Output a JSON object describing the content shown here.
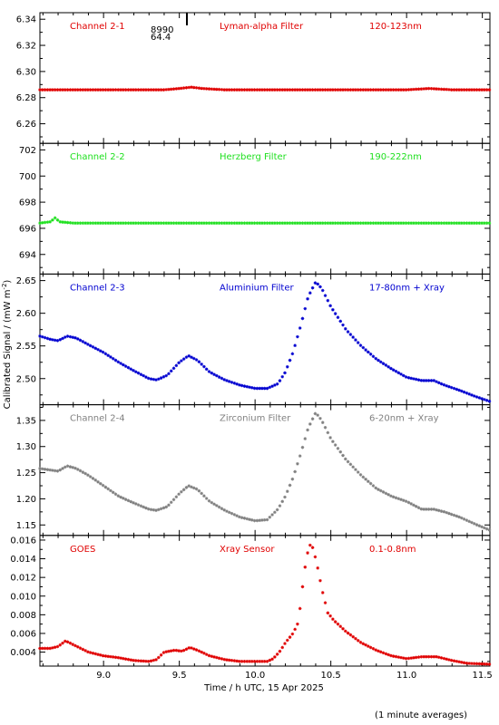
{
  "chart_data": {
    "type": "scatter",
    "xlabel": "Time / h UTC, 15 Apr 2025",
    "ylabel": "Calibrated Signal / (mW m",
    "ylabel_sup": "-2",
    "ylabel_close": ")",
    "footnote": "(1 minute averages)",
    "xlim": [
      8.58,
      11.55
    ],
    "x_ticks": [
      9.0,
      9.5,
      10.0,
      10.5,
      11.0,
      11.5
    ],
    "x_tick_labels": [
      "9.0",
      "9.5",
      "10.0",
      "10.5",
      "11.0",
      "11.5"
    ],
    "marker_annotation": {
      "x": 9.55,
      "lines": [
        "8990",
        "64.4"
      ]
    },
    "panels": [
      {
        "name": "Channel 2-1",
        "filter": "Lyman-alpha Filter",
        "band": "120-123nm",
        "color": "#e00000",
        "ylim": [
          6.245,
          6.345
        ],
        "y_ticks": [
          6.26,
          6.28,
          6.3,
          6.32,
          6.34
        ],
        "y_tick_labels": [
          "6.26",
          "6.28",
          "6.30",
          "6.32",
          "6.34"
        ],
        "points": [
          [
            8.58,
            6.286
          ],
          [
            8.8,
            6.286
          ],
          [
            9.0,
            6.286
          ],
          [
            9.2,
            6.286
          ],
          [
            9.4,
            6.286
          ],
          [
            9.5,
            6.287
          ],
          [
            9.58,
            6.288
          ],
          [
            9.65,
            6.287
          ],
          [
            9.8,
            6.286
          ],
          [
            10.0,
            6.286
          ],
          [
            10.2,
            6.286
          ],
          [
            10.4,
            6.286
          ],
          [
            10.6,
            6.286
          ],
          [
            10.8,
            6.286
          ],
          [
            11.0,
            6.286
          ],
          [
            11.15,
            6.287
          ],
          [
            11.3,
            6.286
          ],
          [
            11.55,
            6.286
          ]
        ]
      },
      {
        "name": "Channel 2-2",
        "filter": "Herzberg Filter",
        "band": "190-222nm",
        "color": "#20e020",
        "ylim": [
          692.5,
          702.5
        ],
        "y_ticks": [
          694,
          696,
          698,
          700,
          702
        ],
        "y_tick_labels": [
          "694",
          "696",
          "698",
          "700",
          "702"
        ],
        "points": [
          [
            8.58,
            696.4
          ],
          [
            8.65,
            696.5
          ],
          [
            8.68,
            696.8
          ],
          [
            8.71,
            696.5
          ],
          [
            8.8,
            696.4
          ],
          [
            9.0,
            696.4
          ],
          [
            9.5,
            696.4
          ],
          [
            10.0,
            696.4
          ],
          [
            10.5,
            696.4
          ],
          [
            11.0,
            696.4
          ],
          [
            11.55,
            696.4
          ]
        ]
      },
      {
        "name": "Channel 2-3",
        "filter": "Aluminium Filter",
        "band": "17-80nm + Xray",
        "color": "#0000d0",
        "ylim": [
          2.46,
          2.66
        ],
        "y_ticks": [
          2.5,
          2.55,
          2.6,
          2.65
        ],
        "y_tick_labels": [
          "2.50",
          "2.55",
          "2.60",
          "2.65"
        ],
        "points": [
          [
            8.58,
            2.565
          ],
          [
            8.65,
            2.56
          ],
          [
            8.7,
            2.558
          ],
          [
            8.76,
            2.565
          ],
          [
            8.82,
            2.562
          ],
          [
            8.9,
            2.552
          ],
          [
            9.0,
            2.54
          ],
          [
            9.1,
            2.525
          ],
          [
            9.2,
            2.512
          ],
          [
            9.3,
            2.5
          ],
          [
            9.35,
            2.498
          ],
          [
            9.42,
            2.505
          ],
          [
            9.5,
            2.525
          ],
          [
            9.56,
            2.535
          ],
          [
            9.62,
            2.528
          ],
          [
            9.7,
            2.51
          ],
          [
            9.8,
            2.498
          ],
          [
            9.9,
            2.49
          ],
          [
            10.0,
            2.485
          ],
          [
            10.08,
            2.485
          ],
          [
            10.15,
            2.492
          ],
          [
            10.2,
            2.51
          ],
          [
            10.25,
            2.54
          ],
          [
            10.3,
            2.58
          ],
          [
            10.35,
            2.625
          ],
          [
            10.4,
            2.648
          ],
          [
            10.44,
            2.638
          ],
          [
            10.5,
            2.61
          ],
          [
            10.6,
            2.575
          ],
          [
            10.7,
            2.55
          ],
          [
            10.8,
            2.53
          ],
          [
            10.9,
            2.515
          ],
          [
            11.0,
            2.502
          ],
          [
            11.1,
            2.497
          ],
          [
            11.18,
            2.497
          ],
          [
            11.25,
            2.49
          ],
          [
            11.35,
            2.482
          ],
          [
            11.45,
            2.473
          ],
          [
            11.55,
            2.465
          ]
        ]
      },
      {
        "name": "Channel 2-4",
        "filter": "Zirconium Filter",
        "band": "6-20nm + Xray",
        "color": "#808080",
        "ylim": [
          1.13,
          1.38
        ],
        "y_ticks": [
          1.15,
          1.2,
          1.25,
          1.3,
          1.35
        ],
        "y_tick_labels": [
          "1.15",
          "1.20",
          "1.25",
          "1.30",
          "1.35"
        ],
        "points": [
          [
            8.58,
            1.258
          ],
          [
            8.65,
            1.255
          ],
          [
            8.7,
            1.253
          ],
          [
            8.76,
            1.263
          ],
          [
            8.82,
            1.258
          ],
          [
            8.9,
            1.245
          ],
          [
            9.0,
            1.225
          ],
          [
            9.1,
            1.205
          ],
          [
            9.2,
            1.192
          ],
          [
            9.3,
            1.18
          ],
          [
            9.35,
            1.178
          ],
          [
            9.42,
            1.185
          ],
          [
            9.5,
            1.21
          ],
          [
            9.56,
            1.225
          ],
          [
            9.62,
            1.218
          ],
          [
            9.7,
            1.195
          ],
          [
            9.8,
            1.178
          ],
          [
            9.9,
            1.165
          ],
          [
            10.0,
            1.158
          ],
          [
            10.08,
            1.16
          ],
          [
            10.15,
            1.18
          ],
          [
            10.2,
            1.205
          ],
          [
            10.25,
            1.24
          ],
          [
            10.3,
            1.285
          ],
          [
            10.35,
            1.335
          ],
          [
            10.4,
            1.365
          ],
          [
            10.44,
            1.35
          ],
          [
            10.5,
            1.315
          ],
          [
            10.6,
            1.275
          ],
          [
            10.7,
            1.245
          ],
          [
            10.8,
            1.22
          ],
          [
            10.9,
            1.205
          ],
          [
            11.0,
            1.195
          ],
          [
            11.1,
            1.18
          ],
          [
            11.18,
            1.18
          ],
          [
            11.25,
            1.175
          ],
          [
            11.35,
            1.165
          ],
          [
            11.45,
            1.152
          ],
          [
            11.55,
            1.14
          ]
        ]
      },
      {
        "name": "GOES",
        "filter": "Xray Sensor",
        "band": "0.1-0.8nm",
        "color": "#e00000",
        "ylim": [
          0.0025,
          0.0165
        ],
        "y_ticks": [
          0.004,
          0.006,
          0.008,
          0.01,
          0.012,
          0.014,
          0.016
        ],
        "y_tick_labels": [
          "0.004",
          "0.006",
          "0.008",
          "0.010",
          "0.012",
          "0.014",
          "0.016"
        ],
        "points": [
          [
            8.58,
            0.0044
          ],
          [
            8.65,
            0.0044
          ],
          [
            8.7,
            0.0046
          ],
          [
            8.75,
            0.0052
          ],
          [
            8.8,
            0.0048
          ],
          [
            8.9,
            0.004
          ],
          [
            9.0,
            0.0036
          ],
          [
            9.1,
            0.0034
          ],
          [
            9.2,
            0.0031
          ],
          [
            9.3,
            0.003
          ],
          [
            9.35,
            0.0032
          ],
          [
            9.4,
            0.004
          ],
          [
            9.47,
            0.0042
          ],
          [
            9.52,
            0.0041
          ],
          [
            9.57,
            0.0045
          ],
          [
            9.62,
            0.0042
          ],
          [
            9.7,
            0.0036
          ],
          [
            9.8,
            0.0032
          ],
          [
            9.9,
            0.003
          ],
          [
            10.0,
            0.003
          ],
          [
            10.08,
            0.003
          ],
          [
            10.12,
            0.0033
          ],
          [
            10.16,
            0.004
          ],
          [
            10.2,
            0.005
          ],
          [
            10.25,
            0.006
          ],
          [
            10.28,
            0.007
          ],
          [
            10.3,
            0.009
          ],
          [
            10.32,
            0.012
          ],
          [
            10.34,
            0.0142
          ],
          [
            10.36,
            0.0155
          ],
          [
            10.38,
            0.0152
          ],
          [
            10.4,
            0.014
          ],
          [
            10.42,
            0.0125
          ],
          [
            10.44,
            0.0108
          ],
          [
            10.46,
            0.0095
          ],
          [
            10.48,
            0.0082
          ],
          [
            10.52,
            0.0074
          ],
          [
            10.6,
            0.0062
          ],
          [
            10.7,
            0.005
          ],
          [
            10.8,
            0.0042
          ],
          [
            10.9,
            0.0036
          ],
          [
            11.0,
            0.0033
          ],
          [
            11.1,
            0.0035
          ],
          [
            11.2,
            0.0035
          ],
          [
            11.3,
            0.0031
          ],
          [
            11.4,
            0.0028
          ],
          [
            11.55,
            0.0027
          ]
        ]
      }
    ]
  }
}
